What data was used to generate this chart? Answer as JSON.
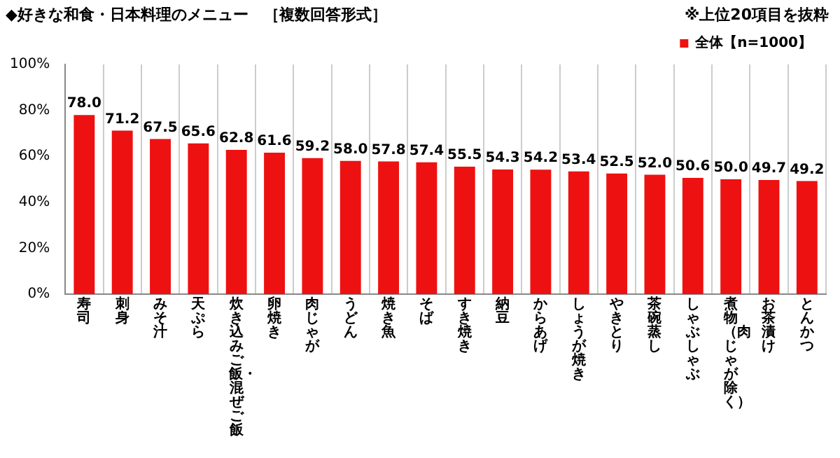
{
  "chart_data": {
    "type": "bar",
    "title": "◆好きな和食・日本料理のメニュー　［複数回答形式］",
    "annotations": [
      "※上位20項目を抜粋"
    ],
    "categories": [
      "寿司",
      "刺身",
      "みそ汁",
      "天ぷら",
      "炊き込みご飯・混ぜご飯",
      "卵焼き",
      "肉じゃが",
      "うどん",
      "焼き魚",
      "そば",
      "すき焼き",
      "納豆",
      "からあげ",
      "しょうが焼き",
      "やきとり",
      "茶碗蒸し",
      "しゃぶしゃぶ",
      "煮物（肉じゃが除く）",
      "お茶漬け",
      "とんかつ"
    ],
    "series": [
      {
        "name": "全体【n=1000】",
        "color": "#ee1111",
        "values": [
          78.0,
          71.2,
          67.5,
          65.6,
          62.8,
          61.6,
          59.2,
          58.0,
          57.8,
          57.4,
          55.5,
          54.3,
          54.2,
          53.4,
          52.5,
          52.0,
          50.6,
          50.0,
          49.7,
          49.2
        ],
        "value_labels": [
          "78.0",
          "71.2",
          "67.5",
          "65.6",
          "62.8",
          "61.6",
          "59.2",
          "58.0",
          "57.8",
          "57.4",
          "55.5",
          "54.3",
          "54.2",
          "53.4",
          "52.5",
          "52.0",
          "50.6",
          "50.0",
          "49.7",
          "49.2"
        ]
      }
    ],
    "ylim": [
      0,
      100
    ],
    "yticks": [
      {
        "value": 0,
        "label": "0%"
      },
      {
        "value": 20,
        "label": "20%"
      },
      {
        "value": 40,
        "label": "40%"
      },
      {
        "value": 60,
        "label": "60%"
      },
      {
        "value": 80,
        "label": "80%"
      },
      {
        "value": 100,
        "label": "100%"
      }
    ],
    "grid": "x",
    "legend": "top right"
  }
}
